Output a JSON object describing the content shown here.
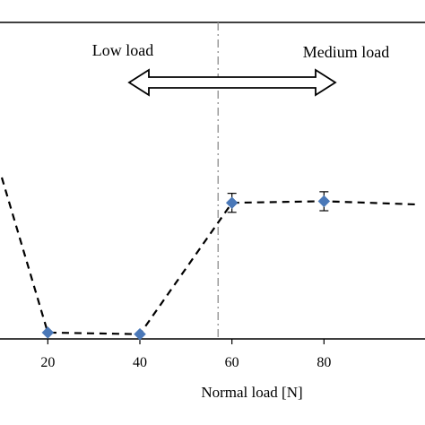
{
  "chart_data": {
    "type": "line",
    "xlabel": "Normal load [N]",
    "ylabel": "",
    "xlim": [
      10,
      100
    ],
    "ylim": [
      0,
      1
    ],
    "x_ticks": [
      "20",
      "40",
      "60",
      "80"
    ],
    "x_tick_values": [
      20,
      40,
      60,
      80
    ],
    "series": [
      {
        "marker": "diamond",
        "color": "#4a78b8",
        "line_style": "dashed",
        "line_color": "#000000",
        "x": [
          20,
          40,
          60,
          80
        ],
        "y": [
          0.02,
          0.015,
          0.43,
          0.435
        ],
        "error": [
          0,
          0,
          0.03,
          0.03
        ]
      }
    ],
    "trend_extension": {
      "left": {
        "x": 10,
        "y": 0.51
      },
      "right": {
        "x": 100,
        "y": 0.425
      }
    },
    "threshold_line": {
      "x": 57,
      "style": "dash-dot",
      "color": "#999999"
    },
    "regions": [
      {
        "label": "Low load"
      },
      {
        "label": "Medium load"
      }
    ],
    "grid": false
  }
}
